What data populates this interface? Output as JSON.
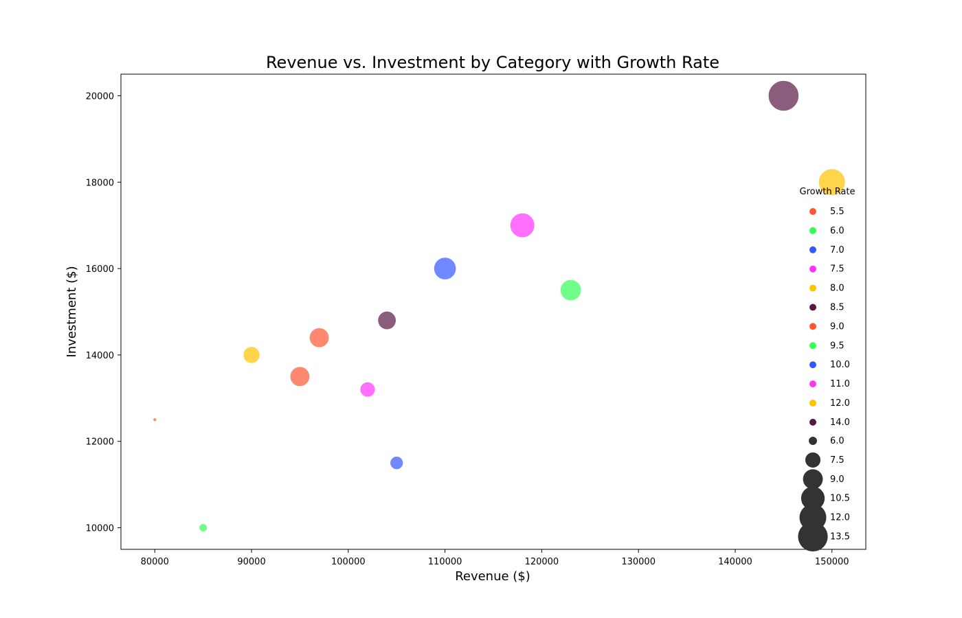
{
  "chart_data": {
    "type": "scatter",
    "title": "Revenue vs. Investment by Category with Growth Rate",
    "xlabel": "Revenue ($)",
    "ylabel": "Investment ($)",
    "xlim": [
      76500,
      153500
    ],
    "ylim": [
      9500,
      20500
    ],
    "xticks": [
      80000,
      90000,
      100000,
      110000,
      120000,
      130000,
      140000,
      150000
    ],
    "yticks": [
      10000,
      12000,
      14000,
      16000,
      18000,
      20000
    ],
    "legend_title": "Growth Rate",
    "legend_position": "right",
    "points": [
      {
        "x": 80000,
        "y": 12500,
        "growth": 5.5,
        "color": "#ff5733"
      },
      {
        "x": 85000,
        "y": 10000,
        "growth": 6.0,
        "color": "#33ff57"
      },
      {
        "x": 90000,
        "y": 14000,
        "growth": 8.0,
        "color": "#ffc300"
      },
      {
        "x": 95000,
        "y": 13500,
        "growth": 9.0,
        "color": "#ff5733"
      },
      {
        "x": 97000,
        "y": 14400,
        "growth": 9.0,
        "color": "#ff5733"
      },
      {
        "x": 102000,
        "y": 13200,
        "growth": 7.5,
        "color": "#ff33ff"
      },
      {
        "x": 104000,
        "y": 14800,
        "growth": 8.5,
        "color": "#581845"
      },
      {
        "x": 105000,
        "y": 11500,
        "growth": 7.0,
        "color": "#3357ff"
      },
      {
        "x": 110000,
        "y": 16000,
        "growth": 10.0,
        "color": "#3357ff"
      },
      {
        "x": 118000,
        "y": 17000,
        "growth": 11.0,
        "color": "#ff33ff"
      },
      {
        "x": 123000,
        "y": 15500,
        "growth": 9.5,
        "color": "#33ff57"
      },
      {
        "x": 145000,
        "y": 20000,
        "growth": 14.0,
        "color": "#581845"
      },
      {
        "x": 150000,
        "y": 18000,
        "growth": 12.0,
        "color": "#ffc300"
      }
    ],
    "hue_legend": [
      {
        "label": "5.5",
        "color": "#ff5733"
      },
      {
        "label": "6.0",
        "color": "#33ff57"
      },
      {
        "label": "7.0",
        "color": "#3357ff"
      },
      {
        "label": "7.5",
        "color": "#ff33ff"
      },
      {
        "label": "8.0",
        "color": "#ffc300"
      },
      {
        "label": "8.5",
        "color": "#581845"
      },
      {
        "label": "9.0",
        "color": "#ff5733"
      },
      {
        "label": "9.5",
        "color": "#33ff57"
      },
      {
        "label": "10.0",
        "color": "#3357ff"
      },
      {
        "label": "11.0",
        "color": "#ff33ff"
      },
      {
        "label": "12.0",
        "color": "#ffc300"
      },
      {
        "label": "14.0",
        "color": "#581845"
      }
    ],
    "size_legend": [
      {
        "label": "6.0",
        "value": 6.0
      },
      {
        "label": "7.5",
        "value": 7.5
      },
      {
        "label": "9.0",
        "value": 9.0
      },
      {
        "label": "10.5",
        "value": 10.5
      },
      {
        "label": "12.0",
        "value": 12.0
      },
      {
        "label": "13.5",
        "value": 13.5
      }
    ],
    "size_legend_color": "#333333",
    "point_alpha": 0.7,
    "grid": false
  }
}
